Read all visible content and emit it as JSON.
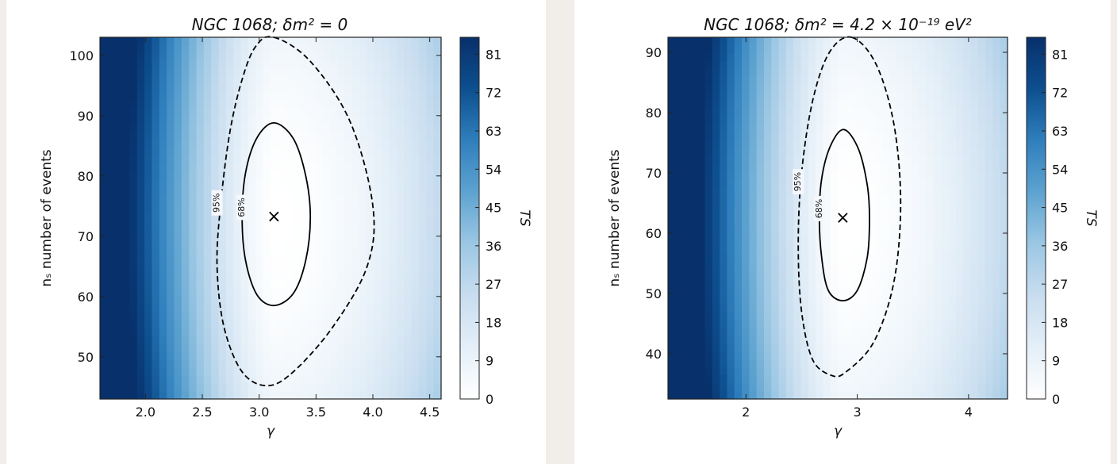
{
  "colors": {
    "cmap": [
      "#ffffff",
      "#e4eff8",
      "#c8ddef",
      "#9bc7e3",
      "#5ea3d0",
      "#2f7fbd",
      "#0d4f8f",
      "#08306b"
    ],
    "contour": "#000000"
  },
  "chart_data": [
    {
      "type": "heatmap",
      "title": "NGC 1068;  δm² = 0",
      "xlabel": "γ",
      "ylabel": "nₛ number of events",
      "colorbar_label": "TS",
      "xlim": [
        1.6,
        4.6
      ],
      "ylim": [
        43,
        103
      ],
      "xticks": [
        2.0,
        2.5,
        3.0,
        3.5,
        4.0,
        4.5
      ],
      "xtick_labels": [
        "2.0",
        "2.5",
        "3.0",
        "3.5",
        "4.0",
        "4.5"
      ],
      "yticks": [
        50,
        60,
        70,
        80,
        90,
        100
      ],
      "ytick_labels": [
        "50",
        "60",
        "70",
        "80",
        "90",
        "100"
      ],
      "colorbar_range": [
        0,
        85
      ],
      "colorbar_ticks": [
        0,
        9,
        18,
        27,
        36,
        45,
        54,
        63,
        72,
        81
      ],
      "colorbar_tick_labels": [
        "0",
        "9",
        "18",
        "27",
        "36",
        "45",
        "54",
        "63",
        "72",
        "81"
      ],
      "best_fit": {
        "x": 3.13,
        "y": 73.2,
        "marker": "×"
      },
      "contours": [
        {
          "label": "68%",
          "style": "solid",
          "points": [
            [
              3.13,
              88.8
            ],
            [
              3.3,
              86.2
            ],
            [
              3.41,
              80.0
            ],
            [
              3.45,
              73.2
            ],
            [
              3.41,
              66.0
            ],
            [
              3.3,
              60.5
            ],
            [
              3.13,
              58.5
            ],
            [
              2.98,
              60.3
            ],
            [
              2.88,
              66.0
            ],
            [
              2.85,
              73.2
            ],
            [
              2.88,
              80.5
            ],
            [
              2.98,
              86.3
            ]
          ]
        },
        {
          "label": "95%",
          "style": "dashed",
          "points": [
            [
              3.13,
              103.0
            ],
            [
              3.45,
              99.0
            ],
            [
              3.8,
              89.0
            ],
            [
              4.0,
              75.0
            ],
            [
              3.95,
              65.0
            ],
            [
              3.65,
              55.0
            ],
            [
              3.3,
              47.5
            ],
            [
              3.07,
              45.2
            ],
            [
              2.85,
              47.5
            ],
            [
              2.69,
              55.0
            ],
            [
              2.63,
              65.0
            ],
            [
              2.66,
              75.0
            ],
            [
              2.74,
              87.0
            ],
            [
              2.85,
              96.0
            ],
            [
              2.97,
              101.5
            ]
          ]
        }
      ]
    },
    {
      "type": "heatmap",
      "title": "NGC 1068;  δm² = 4.2 × 10⁻¹⁹ eV²",
      "xlabel": "γ",
      "ylabel": "nₛ number of events",
      "colorbar_label": "TS",
      "xlim": [
        1.3,
        4.35
      ],
      "ylim": [
        32.5,
        92.5
      ],
      "xticks": [
        2,
        3,
        4
      ],
      "xtick_labels": [
        "2",
        "3",
        "4"
      ],
      "yticks": [
        40,
        50,
        60,
        70,
        80,
        90
      ],
      "ytick_labels": [
        "40",
        "50",
        "60",
        "70",
        "80",
        "90"
      ],
      "colorbar_range": [
        0,
        85
      ],
      "colorbar_ticks": [
        0,
        9,
        18,
        27,
        36,
        45,
        54,
        63,
        72,
        81
      ],
      "colorbar_tick_labels": [
        "0",
        "9",
        "18",
        "27",
        "36",
        "45",
        "54",
        "63",
        "72",
        "81"
      ],
      "best_fit": {
        "x": 2.87,
        "y": 62.5,
        "marker": "×"
      },
      "contours": [
        {
          "label": "68%",
          "style": "solid",
          "points": [
            [
              2.88,
              77.2
            ],
            [
              3.01,
              74.0
            ],
            [
              3.09,
              68.0
            ],
            [
              3.11,
              62.5
            ],
            [
              3.09,
              56.0
            ],
            [
              3.0,
              50.5
            ],
            [
              2.87,
              48.8
            ],
            [
              2.74,
              50.5
            ],
            [
              2.68,
              56.0
            ],
            [
              2.66,
              62.5
            ],
            [
              2.68,
              69.0
            ],
            [
              2.76,
              74.5
            ]
          ]
        },
        {
          "label": "95%",
          "style": "dashed",
          "points": [
            [
              2.95,
              92.5
            ],
            [
              3.17,
              88.0
            ],
            [
              3.33,
              78.0
            ],
            [
              3.39,
              65.0
            ],
            [
              3.33,
              52.0
            ],
            [
              3.15,
              42.0
            ],
            [
              2.9,
              37.0
            ],
            [
              2.77,
              36.4
            ],
            [
              2.6,
              39.0
            ],
            [
              2.5,
              47.0
            ],
            [
              2.47,
              58.0
            ],
            [
              2.5,
              70.0
            ],
            [
              2.6,
              82.0
            ],
            [
              2.75,
              90.0
            ]
          ]
        }
      ]
    }
  ]
}
